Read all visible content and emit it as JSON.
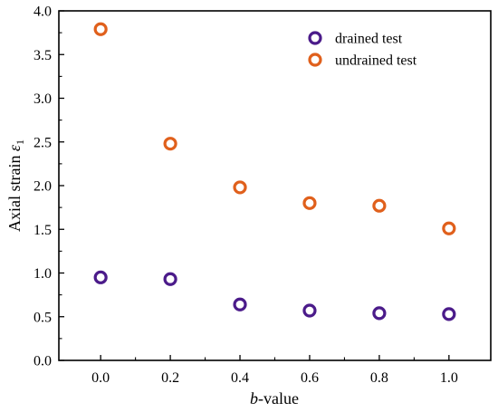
{
  "chart_data": {
    "type": "scatter",
    "title": "",
    "xlabel_italic": "b",
    "xlabel_rest": "-value",
    "ylabel_main": "Axial strain ",
    "ylabel_symbol": "ε",
    "ylabel_sub": "1",
    "xlim": [
      -0.12,
      1.12
    ],
    "ylim": [
      0,
      4.0
    ],
    "xticks": [
      "0.0",
      "0.2",
      "0.4",
      "0.6",
      "0.8",
      "1.0"
    ],
    "yticks": [
      "0.0",
      "0.5",
      "1.0",
      "1.5",
      "2.0",
      "2.5",
      "3.0",
      "3.5",
      "4.0"
    ],
    "grid": false,
    "legend_position": "top-right",
    "series": [
      {
        "name": "drained test",
        "color": "#4b1b8a",
        "x": [
          0.0,
          0.2,
          0.4,
          0.6,
          0.8,
          1.0
        ],
        "y": [
          0.95,
          0.93,
          0.64,
          0.57,
          0.54,
          0.53
        ]
      },
      {
        "name": "undrained test",
        "color": "#e0601c",
        "x": [
          0.0,
          0.2,
          0.4,
          0.6,
          0.8,
          1.0
        ],
        "y": [
          3.79,
          2.48,
          1.98,
          1.8,
          1.77,
          1.51
        ]
      }
    ]
  }
}
